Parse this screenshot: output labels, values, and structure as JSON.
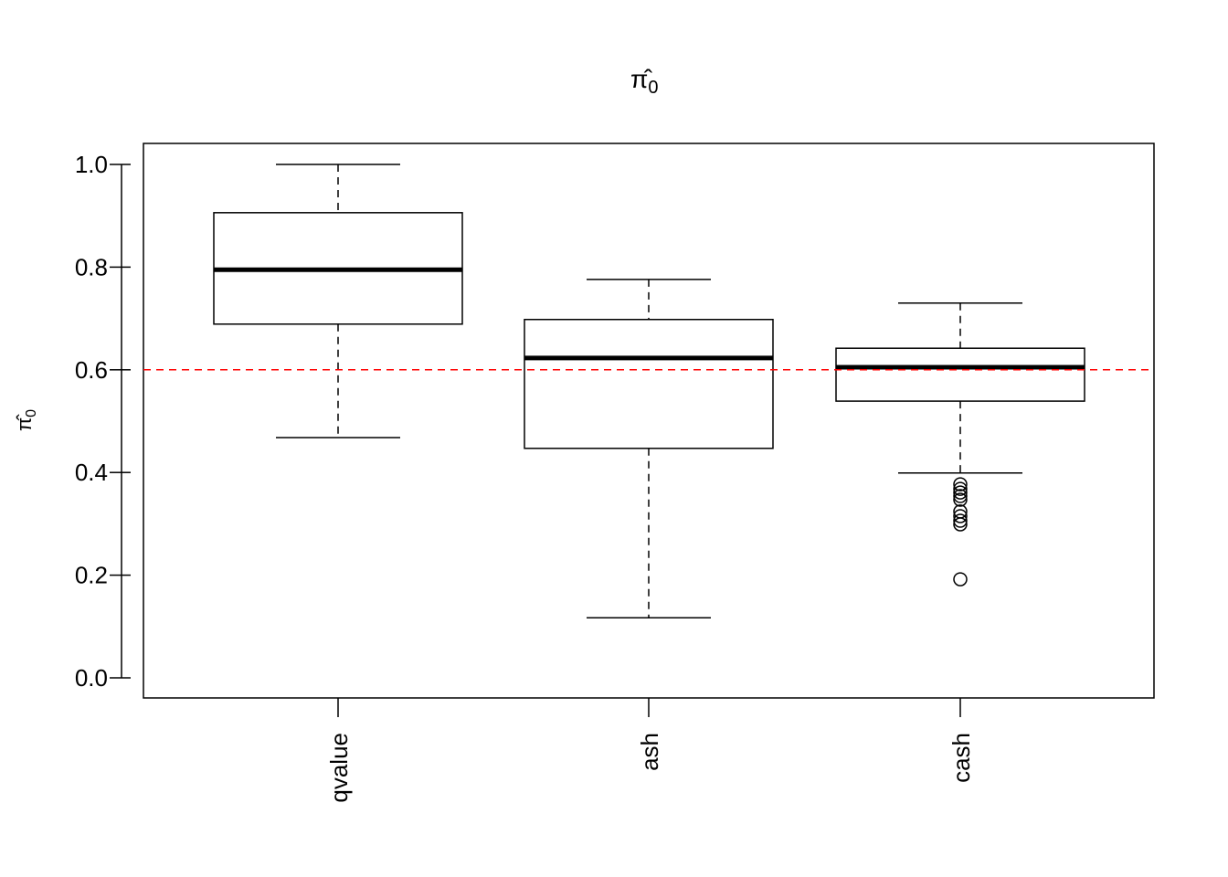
{
  "chart_data": {
    "type": "boxplot",
    "title": "π̂0",
    "title_main": "π̂",
    "title_sub": "0",
    "ylabel_main": "π̂",
    "ylabel_sub": "0",
    "xlabel": "",
    "ylim": [
      0,
      1
    ],
    "yticks": [
      "0.0",
      "0.2",
      "0.4",
      "0.6",
      "0.8",
      "1.0"
    ],
    "categories": [
      "qvalue",
      "ash",
      "cash"
    ],
    "boxes": [
      {
        "name": "qvalue",
        "lower_whisker": 0.468,
        "q1": 0.689,
        "median": 0.795,
        "q3": 0.906,
        "upper_whisker": 1.0,
        "outliers": []
      },
      {
        "name": "ash",
        "lower_whisker": 0.117,
        "q1": 0.447,
        "median": 0.623,
        "q3": 0.698,
        "upper_whisker": 0.776,
        "outliers": []
      },
      {
        "name": "cash",
        "lower_whisker": 0.399,
        "q1": 0.539,
        "median": 0.605,
        "q3": 0.642,
        "upper_whisker": 0.73,
        "outliers": [
          0.377,
          0.368,
          0.361,
          0.354,
          0.347,
          0.324,
          0.315,
          0.306,
          0.299,
          0.192
        ]
      }
    ],
    "reference_line": {
      "y": 0.6,
      "color": "#ff0000",
      "style": "dashed"
    },
    "grid": false
  }
}
